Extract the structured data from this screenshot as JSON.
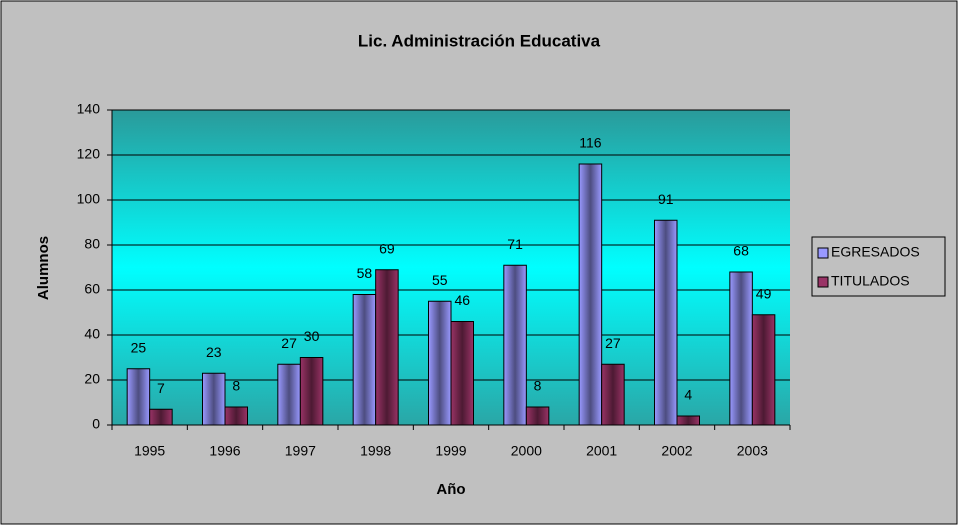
{
  "chart_data": {
    "type": "bar",
    "title": "Lic. Administración Educativa",
    "x_label": "Año",
    "y_label": "Alumnos",
    "categories": [
      "1995",
      "1996",
      "1997",
      "1998",
      "1999",
      "2000",
      "2001",
      "2002",
      "2003"
    ],
    "series": [
      {
        "name": "EGRESADOS",
        "color": "#9999ff",
        "values": [
          25,
          23,
          27,
          58,
          55,
          71,
          116,
          91,
          68
        ]
      },
      {
        "name": "TITULADOS",
        "color": "#993366",
        "values": [
          7,
          8,
          30,
          69,
          46,
          8,
          27,
          4,
          49
        ]
      }
    ],
    "ylim": [
      0,
      140
    ],
    "yticks": [
      0,
      20,
      40,
      60,
      80,
      100,
      120,
      140
    ],
    "grid": true,
    "legend": "right"
  }
}
